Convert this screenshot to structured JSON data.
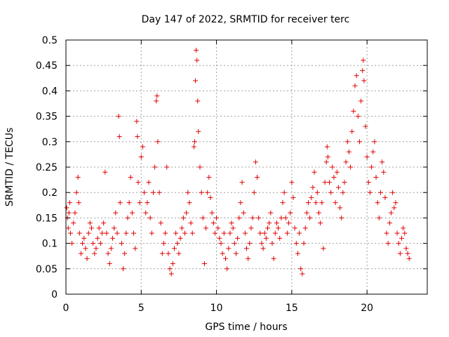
{
  "chart_data": {
    "type": "scatter",
    "title": "Day 147 of 2022, SRMTID for receiver terc",
    "xlabel": "GPS time / hours",
    "ylabel": "SRMTID / TECUs",
    "xlim": [
      0,
      24
    ],
    "ylim": [
      0,
      0.5
    ],
    "xticks": [
      0,
      5,
      10,
      15,
      20
    ],
    "xtick_labels": [
      "0",
      "5",
      "10",
      "15",
      "20"
    ],
    "yticks": [
      0,
      0.05,
      0.1,
      0.15,
      0.2,
      0.25,
      0.3,
      0.35,
      0.4,
      0.45,
      0.5
    ],
    "ytick_labels": [
      "0",
      "0.05",
      "0.1",
      "0.15",
      "0.2",
      "0.25",
      "0.3",
      "0.35",
      "0.4",
      "0.45",
      "0.5"
    ],
    "grid": true,
    "marker": "+",
    "color": "#e00000",
    "series": [
      {
        "name": "SRMTID",
        "points": [
          [
            0.05,
            0.17
          ],
          [
            0.1,
            0.15
          ],
          [
            0.15,
            0.13
          ],
          [
            0.2,
            0.16
          ],
          [
            0.25,
            0.18
          ],
          [
            0.3,
            0.12
          ],
          [
            0.4,
            0.1
          ],
          [
            0.5,
            0.14
          ],
          [
            0.6,
            0.16
          ],
          [
            0.7,
            0.2
          ],
          [
            0.8,
            0.23
          ],
          [
            0.85,
            0.18
          ],
          [
            0.9,
            0.12
          ],
          [
            1.0,
            0.08
          ],
          [
            1.1,
            0.1
          ],
          [
            1.2,
            0.11
          ],
          [
            1.3,
            0.09
          ],
          [
            1.4,
            0.07
          ],
          [
            1.5,
            0.12
          ],
          [
            1.6,
            0.14
          ],
          [
            1.7,
            0.13
          ],
          [
            1.8,
            0.1
          ],
          [
            1.9,
            0.08
          ],
          [
            2.0,
            0.09
          ],
          [
            2.1,
            0.11
          ],
          [
            2.2,
            0.13
          ],
          [
            2.3,
            0.1
          ],
          [
            2.4,
            0.12
          ],
          [
            2.5,
            0.14
          ],
          [
            2.6,
            0.24
          ],
          [
            2.7,
            0.12
          ],
          [
            2.8,
            0.08
          ],
          [
            2.9,
            0.06
          ],
          [
            3.0,
            0.09
          ],
          [
            3.1,
            0.11
          ],
          [
            3.2,
            0.13
          ],
          [
            3.3,
            0.16
          ],
          [
            3.4,
            0.12
          ],
          [
            3.5,
            0.35
          ],
          [
            3.55,
            0.31
          ],
          [
            3.6,
            0.18
          ],
          [
            3.7,
            0.1
          ],
          [
            3.8,
            0.05
          ],
          [
            3.9,
            0.08
          ],
          [
            4.0,
            0.12
          ],
          [
            4.1,
            0.15
          ],
          [
            4.2,
            0.18
          ],
          [
            4.3,
            0.23
          ],
          [
            4.4,
            0.16
          ],
          [
            4.5,
            0.12
          ],
          [
            4.6,
            0.09
          ],
          [
            4.7,
            0.34
          ],
          [
            4.75,
            0.31
          ],
          [
            4.8,
            0.22
          ],
          [
            4.9,
            0.18
          ],
          [
            5.0,
            0.27
          ],
          [
            5.1,
            0.29
          ],
          [
            5.2,
            0.2
          ],
          [
            5.3,
            0.16
          ],
          [
            5.4,
            0.18
          ],
          [
            5.5,
            0.22
          ],
          [
            5.6,
            0.15
          ],
          [
            5.7,
            0.12
          ],
          [
            5.8,
            0.2
          ],
          [
            5.9,
            0.25
          ],
          [
            6.0,
            0.38
          ],
          [
            6.05,
            0.39
          ],
          [
            6.1,
            0.3
          ],
          [
            6.2,
            0.2
          ],
          [
            6.3,
            0.14
          ],
          [
            6.4,
            0.08
          ],
          [
            6.5,
            0.1
          ],
          [
            6.6,
            0.12
          ],
          [
            6.7,
            0.25
          ],
          [
            6.8,
            0.08
          ],
          [
            6.9,
            0.05
          ],
          [
            7.0,
            0.04
          ],
          [
            7.1,
            0.06
          ],
          [
            7.2,
            0.09
          ],
          [
            7.3,
            0.12
          ],
          [
            7.4,
            0.1
          ],
          [
            7.5,
            0.08
          ],
          [
            7.6,
            0.11
          ],
          [
            7.7,
            0.13
          ],
          [
            7.8,
            0.15
          ],
          [
            7.9,
            0.12
          ],
          [
            8.0,
            0.16
          ],
          [
            8.1,
            0.2
          ],
          [
            8.2,
            0.18
          ],
          [
            8.3,
            0.14
          ],
          [
            8.4,
            0.12
          ],
          [
            8.5,
            0.29
          ],
          [
            8.55,
            0.3
          ],
          [
            8.6,
            0.42
          ],
          [
            8.65,
            0.48
          ],
          [
            8.7,
            0.46
          ],
          [
            8.75,
            0.38
          ],
          [
            8.8,
            0.32
          ],
          [
            8.9,
            0.25
          ],
          [
            9.0,
            0.2
          ],
          [
            9.1,
            0.15
          ],
          [
            9.2,
            0.06
          ],
          [
            9.3,
            0.13
          ],
          [
            9.4,
            0.2
          ],
          [
            9.5,
            0.23
          ],
          [
            9.6,
            0.19
          ],
          [
            9.7,
            0.16
          ],
          [
            9.8,
            0.14
          ],
          [
            9.9,
            0.12
          ],
          [
            10.0,
            0.15
          ],
          [
            10.1,
            0.13
          ],
          [
            10.2,
            0.11
          ],
          [
            10.3,
            0.1
          ],
          [
            10.4,
            0.08
          ],
          [
            10.5,
            0.12
          ],
          [
            10.6,
            0.07
          ],
          [
            10.7,
            0.05
          ],
          [
            10.8,
            0.09
          ],
          [
            10.9,
            0.12
          ],
          [
            11.0,
            0.14
          ],
          [
            11.1,
            0.13
          ],
          [
            11.2,
            0.1
          ],
          [
            11.3,
            0.08
          ],
          [
            11.4,
            0.11
          ],
          [
            11.5,
            0.15
          ],
          [
            11.6,
            0.18
          ],
          [
            11.7,
            0.22
          ],
          [
            11.8,
            0.16
          ],
          [
            11.9,
            0.12
          ],
          [
            12.0,
            0.09
          ],
          [
            12.1,
            0.07
          ],
          [
            12.2,
            0.1
          ],
          [
            12.3,
            0.13
          ],
          [
            12.4,
            0.15
          ],
          [
            12.5,
            0.2
          ],
          [
            12.6,
            0.26
          ],
          [
            12.7,
            0.23
          ],
          [
            12.8,
            0.15
          ],
          [
            12.9,
            0.12
          ],
          [
            13.0,
            0.1
          ],
          [
            13.1,
            0.09
          ],
          [
            13.2,
            0.12
          ],
          [
            13.3,
            0.11
          ],
          [
            13.4,
            0.13
          ],
          [
            13.5,
            0.14
          ],
          [
            13.6,
            0.16
          ],
          [
            13.7,
            0.1
          ],
          [
            13.8,
            0.07
          ],
          [
            13.9,
            0.12
          ],
          [
            14.0,
            0.14
          ],
          [
            14.1,
            0.13
          ],
          [
            14.2,
            0.11
          ],
          [
            14.3,
            0.15
          ],
          [
            14.4,
            0.18
          ],
          [
            14.5,
            0.2
          ],
          [
            14.6,
            0.15
          ],
          [
            14.7,
            0.12
          ],
          [
            14.8,
            0.14
          ],
          [
            14.9,
            0.16
          ],
          [
            15.0,
            0.22
          ],
          [
            15.1,
            0.19
          ],
          [
            15.2,
            0.13
          ],
          [
            15.3,
            0.1
          ],
          [
            15.4,
            0.08
          ],
          [
            15.5,
            0.12
          ],
          [
            15.6,
            0.05
          ],
          [
            15.7,
            0.04
          ],
          [
            15.8,
            0.1
          ],
          [
            15.9,
            0.13
          ],
          [
            16.0,
            0.16
          ],
          [
            16.1,
            0.18
          ],
          [
            16.2,
            0.15
          ],
          [
            16.3,
            0.19
          ],
          [
            16.4,
            0.21
          ],
          [
            16.5,
            0.24
          ],
          [
            16.6,
            0.18
          ],
          [
            16.7,
            0.2
          ],
          [
            16.8,
            0.16
          ],
          [
            16.9,
            0.14
          ],
          [
            17.0,
            0.18
          ],
          [
            17.1,
            0.09
          ],
          [
            17.2,
            0.22
          ],
          [
            17.3,
            0.26
          ],
          [
            17.35,
            0.29
          ],
          [
            17.4,
            0.27
          ],
          [
            17.5,
            0.22
          ],
          [
            17.6,
            0.2
          ],
          [
            17.7,
            0.25
          ],
          [
            17.8,
            0.23
          ],
          [
            17.9,
            0.18
          ],
          [
            18.0,
            0.24
          ],
          [
            18.1,
            0.21
          ],
          [
            18.2,
            0.17
          ],
          [
            18.3,
            0.15
          ],
          [
            18.4,
            0.2
          ],
          [
            18.5,
            0.22
          ],
          [
            18.6,
            0.26
          ],
          [
            18.7,
            0.3
          ],
          [
            18.8,
            0.28
          ],
          [
            18.9,
            0.25
          ],
          [
            19.0,
            0.32
          ],
          [
            19.1,
            0.36
          ],
          [
            19.2,
            0.41
          ],
          [
            19.3,
            0.43
          ],
          [
            19.4,
            0.35
          ],
          [
            19.5,
            0.3
          ],
          [
            19.6,
            0.38
          ],
          [
            19.7,
            0.44
          ],
          [
            19.75,
            0.46
          ],
          [
            19.8,
            0.42
          ],
          [
            19.9,
            0.33
          ],
          [
            20.0,
            0.27
          ],
          [
            20.1,
            0.22
          ],
          [
            20.2,
            0.2
          ],
          [
            20.3,
            0.25
          ],
          [
            20.4,
            0.28
          ],
          [
            20.5,
            0.3
          ],
          [
            20.6,
            0.23
          ],
          [
            20.7,
            0.18
          ],
          [
            20.8,
            0.15
          ],
          [
            20.9,
            0.2
          ],
          [
            21.0,
            0.26
          ],
          [
            21.1,
            0.24
          ],
          [
            21.2,
            0.19
          ],
          [
            21.3,
            0.12
          ],
          [
            21.4,
            0.1
          ],
          [
            21.5,
            0.14
          ],
          [
            21.6,
            0.16
          ],
          [
            21.7,
            0.2
          ],
          [
            21.8,
            0.17
          ],
          [
            21.9,
            0.18
          ],
          [
            22.0,
            0.12
          ],
          [
            22.1,
            0.1
          ],
          [
            22.2,
            0.08
          ],
          [
            22.3,
            0.11
          ],
          [
            22.4,
            0.13
          ],
          [
            22.5,
            0.12
          ],
          [
            22.6,
            0.09
          ],
          [
            22.7,
            0.08
          ],
          [
            22.8,
            0.07
          ]
        ]
      }
    ]
  }
}
